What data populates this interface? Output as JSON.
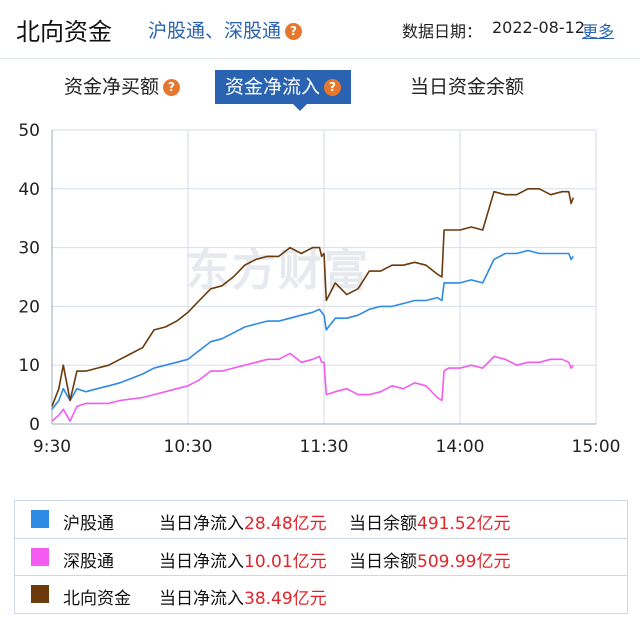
{
  "header": {
    "title": "北向资金",
    "subtitle": "沪股通、深股通",
    "date_label": "数据日期：",
    "date_value": "2022-08-12",
    "more_label": "更多"
  },
  "tabs": [
    {
      "label": "资金净买额",
      "help": true,
      "active": false
    },
    {
      "label": "资金净流入",
      "help": true,
      "active": true
    },
    {
      "label": "当日资金余额",
      "help": false,
      "active": false
    }
  ],
  "help_glyph": "?",
  "watermark": "东方财富",
  "colors": {
    "accent": "#2a63b1",
    "help": "#e8772e",
    "value_red": "#e2242a"
  },
  "legend": [
    {
      "name": "沪股通",
      "color": "#2f8ae6",
      "flow_label": "当日净流入",
      "flow_value": "28.48亿元",
      "balance_label": "当日余额",
      "balance_value": "491.52亿元"
    },
    {
      "name": "深股通",
      "color": "#f25af0",
      "flow_label": "当日净流入",
      "flow_value": "10.01亿元",
      "balance_label": "当日余额",
      "balance_value": "509.99亿元"
    },
    {
      "name": "北向资金",
      "color": "#6b3a0d",
      "flow_label": "当日净流入",
      "flow_value": "38.49亿元"
    }
  ],
  "chart_data": {
    "type": "line",
    "x_ticks": [
      "9:30",
      "10:30",
      "11:30",
      "14:00",
      "15:00"
    ],
    "y_ticks": [
      0,
      10,
      20,
      30,
      40,
      50
    ],
    "ylim": [
      0,
      50
    ],
    "x_unit": "minutes_since_930_trading",
    "x_range": [
      0,
      240
    ],
    "grid": true,
    "series": [
      {
        "name": "沪股通",
        "color": "#2f8ae6",
        "x": [
          0,
          3,
          5,
          8,
          11,
          15,
          20,
          25,
          30,
          40,
          45,
          50,
          55,
          60,
          65,
          70,
          75,
          80,
          85,
          90,
          95,
          100,
          105,
          110,
          115,
          118,
          119,
          120,
          121,
          125,
          130,
          135,
          140,
          145,
          150,
          155,
          160,
          165,
          170,
          172,
          173,
          175,
          180,
          185,
          190,
          195,
          200,
          205,
          210,
          215,
          220,
          225,
          228,
          229,
          230
        ],
        "y": [
          2.5,
          4,
          6,
          4,
          6,
          5.5,
          6,
          6.5,
          7,
          8.5,
          9.5,
          10,
          10.5,
          11,
          12.5,
          14,
          14.5,
          15.5,
          16.5,
          17,
          17.5,
          17.5,
          18,
          18.5,
          19,
          19.5,
          19,
          18.5,
          16,
          18,
          18,
          18.5,
          19.5,
          20,
          20,
          20.5,
          21,
          21,
          21.5,
          21,
          24,
          24,
          24,
          24.5,
          24,
          28,
          29,
          29,
          29.5,
          29,
          29,
          29,
          29,
          28,
          28.5
        ]
      },
      {
        "name": "深股通",
        "color": "#f25af0",
        "x": [
          0,
          3,
          5,
          8,
          11,
          15,
          20,
          25,
          30,
          40,
          45,
          50,
          55,
          60,
          65,
          70,
          75,
          80,
          85,
          90,
          95,
          100,
          105,
          110,
          115,
          118,
          119,
          120,
          121,
          125,
          130,
          135,
          140,
          145,
          150,
          155,
          160,
          165,
          170,
          172,
          173,
          175,
          180,
          185,
          190,
          195,
          200,
          205,
          210,
          215,
          220,
          225,
          228,
          229,
          230
        ],
        "y": [
          0.5,
          1.5,
          2.5,
          0.5,
          3,
          3.5,
          3.5,
          3.5,
          4,
          4.5,
          5,
          5.5,
          6,
          6.5,
          7.5,
          9,
          9,
          9.5,
          10,
          10.5,
          11,
          11,
          12,
          10.5,
          11,
          11.5,
          10.5,
          10.5,
          5,
          5.5,
          6,
          5,
          5,
          5.5,
          6.5,
          6,
          7,
          6.5,
          4.5,
          4,
          9,
          9.5,
          9.5,
          10,
          9.5,
          11.5,
          11,
          10,
          10.5,
          10.5,
          11,
          11,
          10.5,
          9.5,
          10
        ]
      },
      {
        "name": "北向资金",
        "color": "#6b3a0d",
        "x": [
          0,
          3,
          5,
          8,
          11,
          15,
          20,
          25,
          30,
          40,
          45,
          50,
          55,
          60,
          65,
          70,
          75,
          80,
          85,
          90,
          95,
          100,
          105,
          110,
          115,
          118,
          119,
          120,
          121,
          125,
          130,
          135,
          140,
          145,
          150,
          155,
          160,
          165,
          170,
          172,
          173,
          175,
          180,
          185,
          190,
          195,
          200,
          205,
          210,
          215,
          220,
          225,
          228,
          229,
          230
        ],
        "y": [
          3,
          6,
          10,
          4,
          9,
          9,
          9.5,
          10,
          11,
          13,
          16,
          16.5,
          17.5,
          19,
          21,
          23,
          23.5,
          25,
          27,
          28,
          28.5,
          28.5,
          30,
          29,
          30,
          30,
          28.5,
          29,
          21,
          24,
          22,
          23,
          26,
          26,
          27,
          27,
          27.5,
          27,
          25.5,
          25,
          33,
          33,
          33,
          33.5,
          33,
          39.5,
          39,
          39,
          40,
          40,
          39,
          39.5,
          39.5,
          37.5,
          38.5
        ]
      }
    ]
  }
}
